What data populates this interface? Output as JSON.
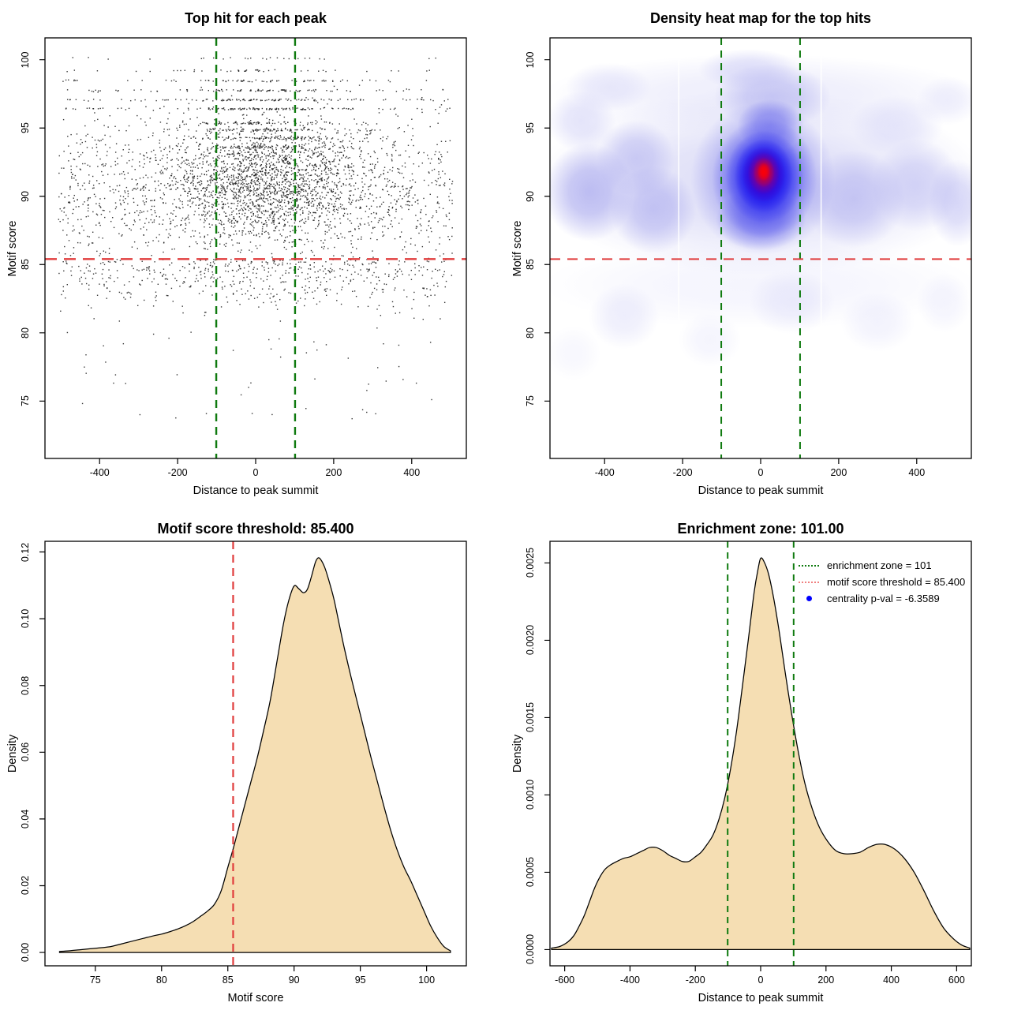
{
  "figure": {
    "background": "#ffffff"
  },
  "colors": {
    "threshold_red": "#e03c3c",
    "zone_green": "#0f7a0f",
    "legend_red": "#f08080",
    "legend_blue": "#0000ff",
    "density_fill": "#f5deb3",
    "curve_stroke": "#000000",
    "point_color": "#1a1a1a"
  },
  "stats": {
    "motif_score_threshold": 85.4,
    "enrichment_zone": 101,
    "centrality_pval": -6.3589
  },
  "chart_data": [
    {
      "id": "top-hits-scatter",
      "type": "scatter",
      "title": "Top hit for each peak",
      "xlabel": "Distance to peak summit",
      "ylabel": "Motif score",
      "xlim": [
        -540,
        540
      ],
      "ylim": [
        70.8,
        101.6
      ],
      "xticks": [
        -400,
        -200,
        0,
        200,
        400
      ],
      "xtick_labels": [
        "-400",
        "-200",
        "0",
        "200",
        "400"
      ],
      "yticks": [
        75,
        80,
        85,
        90,
        95,
        100
      ],
      "ytick_labels": [
        "75",
        "80",
        "85",
        "90",
        "95",
        "100"
      ],
      "grid": false,
      "hline": {
        "y": 85.4,
        "color": "#e03c3c",
        "dash": [
          15,
          9
        ],
        "width": 2.4
      },
      "vlines": [
        {
          "x": -101,
          "color": "#0f7a0f",
          "dash": [
            10,
            7
          ],
          "width": 2.4
        },
        {
          "x": 101,
          "color": "#0f7a0f",
          "dash": [
            10,
            7
          ],
          "width": 2.4
        }
      ],
      "points_spec": {
        "seed": 20240601,
        "point_size": 1.4,
        "point_alpha": 0.88,
        "clusters": [
          {
            "n": 1700,
            "x": {
              "dist": "normal",
              "mean": 25,
              "sd": 130,
              "min": -515,
              "max": 515
            },
            "y": {
              "dist": "normal",
              "mean": 91.2,
              "sd": 2.1,
              "min": 85.5,
              "max": 97.2
            }
          },
          {
            "n": 1400,
            "x": {
              "dist": "uniform",
              "min": -505,
              "max": 505
            },
            "y": {
              "dist": "normal",
              "mean": 90.2,
              "sd": 2.9,
              "min": 85.45,
              "max": 98.2
            }
          },
          {
            "n": 430,
            "x": {
              "dist": "uniform",
              "min": -505,
              "max": 505
            },
            "y": {
              "dist": "halfneg",
              "base": 85.4,
              "sd": 2.0,
              "min": 79.3
            }
          },
          {
            "n": 130,
            "x": {
              "dist": "normal",
              "mean": 20,
              "sd": 150,
              "min": -500,
              "max": 500
            },
            "y": {
              "dist": "halfneg",
              "base": 85.4,
              "sd": 1.6,
              "min": 80
            }
          },
          {
            "n": 46,
            "x": {
              "dist": "uniform",
              "min": -470,
              "max": 470
            },
            "y": {
              "dist": "uniform",
              "min": 73.6,
              "max": 79.6
            }
          }
        ],
        "rows": [
          {
            "y": 100.1,
            "n": 26
          },
          {
            "y": 99.2,
            "n": 42
          },
          {
            "y": 98.45,
            "n": 72
          },
          {
            "y": 97.75,
            "n": 95
          },
          {
            "y": 97.05,
            "n": 112
          },
          {
            "y": 96.4,
            "n": 128
          }
        ],
        "row_x": {
          "frac_center": 0.55,
          "center_mean": 30,
          "center_sd": 95,
          "uniform_min": -500,
          "uniform_max": 500
        },
        "row_jitter": 0.07,
        "center_rows": [
          {
            "y": 93.6,
            "n": 65
          },
          {
            "y": 94.25,
            "n": 72
          },
          {
            "y": 94.85,
            "n": 78
          },
          {
            "y": 95.35,
            "n": 70
          }
        ],
        "center_row_x": {
          "mean": 35,
          "sd": 110,
          "min": -500,
          "max": 500
        },
        "center_row_jitter": 0.09
      }
    },
    {
      "id": "top-hits-density-heatmap",
      "type": "heatmap",
      "title": "Density heat map for the top hits",
      "xlabel": "Distance to peak summit",
      "ylabel": "Motif score",
      "xlim": [
        -540,
        540
      ],
      "ylim": [
        70.8,
        101.6
      ],
      "xticks": [
        -400,
        -200,
        0,
        200,
        400
      ],
      "xtick_labels": [
        "-400",
        "-200",
        "0",
        "200",
        "400"
      ],
      "yticks": [
        75,
        80,
        85,
        90,
        95,
        100
      ],
      "ytick_labels": [
        "75",
        "80",
        "85",
        "90",
        "95",
        "100"
      ],
      "hotspot": {
        "x": 8,
        "y": 91.7
      },
      "colormap": [
        "#ffffff",
        "#bcbcef",
        "#4747f0",
        "#1608ea",
        "#8e0082",
        "#fb0007"
      ],
      "hline": {
        "y": 85.4,
        "color": "#e03c3c",
        "dash": [
          13,
          9
        ],
        "width": 2
      },
      "vlines": [
        {
          "x": -101,
          "color": "#0f7a0f",
          "dash": [
            9,
            7
          ],
          "width": 2
        },
        {
          "x": 101,
          "color": "#0f7a0f",
          "dash": [
            9,
            7
          ],
          "width": 2
        }
      ],
      "white_lines": [
        -210,
        155
      ],
      "blobs": [
        [
          0,
          91,
          580,
          6.8,
          "#bcbcef",
          0.5
        ],
        [
          0,
          97.4,
          560,
          3.0,
          "#d5d5f6",
          0.42
        ],
        [
          0,
          83.5,
          560,
          3.2,
          "#e8e8fb",
          0.45
        ],
        [
          -440,
          90.3,
          115,
          3.6,
          "#8a8ae8",
          0.52
        ],
        [
          -320,
          92.8,
          100,
          2.8,
          "#9e9eec",
          0.45
        ],
        [
          -275,
          89,
          110,
          3.2,
          "#9292ea",
          0.46
        ],
        [
          -460,
          95.5,
          90,
          2.2,
          "#b8b8f2",
          0.38
        ],
        [
          -390,
          98,
          110,
          1.8,
          "#c8c8f5",
          0.36
        ],
        [
          240,
          89.8,
          130,
          3.6,
          "#9e9eec",
          0.46
        ],
        [
          400,
          90.8,
          115,
          3.4,
          "#a8a8ee",
          0.42
        ],
        [
          505,
          89.5,
          75,
          3.2,
          "#9e9eec",
          0.38
        ],
        [
          350,
          95.2,
          120,
          2.2,
          "#c3c3f4",
          0.36
        ],
        [
          480,
          97,
          80,
          1.8,
          "#cfcff6",
          0.32
        ],
        [
          30,
          97.3,
          150,
          2.4,
          "#9e9eec",
          0.5
        ],
        [
          -30,
          99.3,
          130,
          1.5,
          "#b8b8f2",
          0.4
        ],
        [
          -350,
          81.2,
          90,
          2.4,
          "#cfcff6",
          0.36
        ],
        [
          -130,
          79.5,
          80,
          2.0,
          "#dcdcf9",
          0.3
        ],
        [
          80,
          82.3,
          110,
          2.4,
          "#cfcff6",
          0.34
        ],
        [
          300,
          80.8,
          95,
          2.2,
          "#d8d8f8",
          0.32
        ],
        [
          470,
          82.2,
          70,
          2.2,
          "#d8d8f8",
          0.28
        ],
        [
          -480,
          78.5,
          70,
          2.0,
          "#e2e2fa",
          0.26
        ],
        [
          5,
          91.3,
          185,
          5.6,
          "#6e6ee9",
          0.62
        ],
        [
          0,
          88.3,
          115,
          2.3,
          "#4646ea",
          0.5
        ],
        [
          25,
          95.2,
          85,
          1.9,
          "#4d4de9",
          0.45
        ],
        [
          10,
          91.3,
          135,
          4.4,
          "#4747f0",
          0.8
        ],
        [
          10,
          91.4,
          100,
          3.4,
          "#2424f3",
          0.88
        ],
        [
          8,
          91.5,
          75,
          2.7,
          "#1608ea",
          0.93
        ],
        [
          8,
          91.6,
          56,
          2.05,
          "#4e00c4",
          0.93
        ],
        [
          8,
          91.7,
          41,
          1.55,
          "#8e0082",
          0.94
        ],
        [
          8,
          91.75,
          28,
          1.1,
          "#cb0033",
          0.96
        ],
        [
          8,
          91.8,
          16.5,
          0.68,
          "#fb0007",
          1
        ]
      ]
    },
    {
      "id": "motif-score-density",
      "type": "density",
      "title": "Motif score threshold: 85.400",
      "xlabel": "Motif score",
      "ylabel": "Density",
      "xlim": [
        71.2,
        103.0
      ],
      "ylim": [
        -0.004,
        0.1232
      ],
      "xticks": [
        75,
        80,
        85,
        90,
        95,
        100
      ],
      "xtick_labels": [
        "75",
        "80",
        "85",
        "90",
        "95",
        "100"
      ],
      "yticks": [
        0,
        0.02,
        0.04,
        0.06,
        0.08,
        0.1,
        0.12
      ],
      "ytick_labels": [
        "0.00",
        "0.02",
        "0.04",
        "0.06",
        "0.08",
        "0.10",
        "0.12"
      ],
      "fill": "#f5deb3",
      "stroke": "#000000",
      "peak": {
        "x": 91.8,
        "y": 0.118
      },
      "vlines": [
        {
          "x": 85.4,
          "color": "#e03c3c",
          "dash": [
            10,
            7
          ],
          "width": 2.2
        }
      ],
      "curve": {
        "x": [
          72.3,
          73.0,
          73.8,
          74.6,
          75.4,
          76.2,
          77.0,
          77.8,
          78.6,
          79.4,
          80.0,
          80.6,
          81.2,
          81.8,
          82.4,
          83.0,
          83.5,
          84.0,
          84.5,
          85.0,
          85.4,
          85.8,
          86.2,
          86.7,
          87.2,
          87.7,
          88.2,
          88.7,
          89.2,
          89.6,
          90.0,
          90.35,
          90.7,
          91.0,
          91.3,
          91.6,
          91.8,
          92.0,
          92.3,
          92.6,
          93.0,
          93.4,
          93.8,
          94.3,
          94.8,
          95.3,
          95.8,
          96.3,
          96.8,
          97.3,
          97.8,
          98.3,
          98.8,
          99.3,
          99.8,
          100.3,
          100.8,
          101.3,
          101.8
        ],
        "y": [
          0.0003,
          0.0005,
          0.0008,
          0.0011,
          0.0014,
          0.0018,
          0.0026,
          0.0034,
          0.0042,
          0.005,
          0.0055,
          0.0062,
          0.007,
          0.008,
          0.0093,
          0.011,
          0.0125,
          0.0145,
          0.0185,
          0.0255,
          0.031,
          0.037,
          0.043,
          0.0505,
          0.058,
          0.0665,
          0.0755,
          0.087,
          0.0985,
          0.1055,
          0.1098,
          0.109,
          0.1078,
          0.1088,
          0.1125,
          0.1168,
          0.1182,
          0.1178,
          0.1155,
          0.1118,
          0.106,
          0.0985,
          0.091,
          0.0825,
          0.0745,
          0.0665,
          0.0585,
          0.051,
          0.0435,
          0.0365,
          0.0305,
          0.0255,
          0.0215,
          0.017,
          0.0125,
          0.008,
          0.0045,
          0.0018,
          0.0005
        ]
      }
    },
    {
      "id": "summit-distance-density",
      "type": "density",
      "title": "Enrichment zone: 101.00",
      "xlabel": "Distance to peak summit",
      "ylabel": "Density",
      "xlim": [
        -645,
        645
      ],
      "ylim": [
        -0.000105,
        0.00264
      ],
      "xticks": [
        -600,
        -400,
        -200,
        0,
        200,
        400,
        600
      ],
      "xtick_labels": [
        "-600",
        "-400",
        "-200",
        "0",
        "200",
        "400",
        "600"
      ],
      "yticks": [
        0,
        0.0005,
        0.001,
        0.0015,
        0.002,
        0.0025
      ],
      "ytick_labels": [
        "0.0000",
        "0.0005",
        "0.0010",
        "0.0015",
        "0.0020",
        "0.0025"
      ],
      "fill": "#f5deb3",
      "stroke": "#000000",
      "peak": {
        "x": 0,
        "y": 0.00253
      },
      "vlines": [
        {
          "x": -101,
          "color": "#0f7a0f",
          "dash": [
            8,
            6
          ],
          "width": 2
        },
        {
          "x": 101,
          "color": "#0f7a0f",
          "dash": [
            8,
            6
          ],
          "width": 2
        }
      ],
      "curve": {
        "x": [
          -640,
          -615,
          -590,
          -572,
          -556,
          -540,
          -524,
          -508,
          -492,
          -476,
          -458,
          -440,
          -420,
          -400,
          -380,
          -360,
          -340,
          -320,
          -300,
          -280,
          -260,
          -240,
          -220,
          -200,
          -182,
          -164,
          -146,
          -128,
          -110,
          -92,
          -74,
          -56,
          -38,
          -20,
          -8,
          0,
          10,
          24,
          40,
          58,
          76,
          96,
          116,
          136,
          158,
          180,
          205,
          230,
          255,
          280,
          305,
          330,
          355,
          380,
          410,
          440,
          470,
          500,
          530,
          560,
          590,
          615,
          640
        ],
        "y": [
          1e-05,
          2e-05,
          5e-05,
          9e-05,
          0.00015,
          0.00022,
          0.00031,
          0.0004,
          0.00047,
          0.00052,
          0.00055,
          0.00057,
          0.00059,
          0.0006,
          0.00062,
          0.00064,
          0.00066,
          0.00066,
          0.00064,
          0.00061,
          0.00059,
          0.00057,
          0.00057,
          0.0006,
          0.00063,
          0.00068,
          0.00074,
          0.00084,
          0.00098,
          0.00117,
          0.00141,
          0.0017,
          0.002,
          0.00231,
          0.00246,
          0.00253,
          0.00251,
          0.00243,
          0.00227,
          0.00204,
          0.00178,
          0.00151,
          0.00127,
          0.00107,
          0.00091,
          0.00079,
          0.0007,
          0.00064,
          0.00062,
          0.00062,
          0.00063,
          0.00066,
          0.00068,
          0.00068,
          0.00065,
          0.00059,
          0.0005,
          0.00038,
          0.00025,
          0.00014,
          7e-05,
          3e-05,
          1e-05
        ]
      },
      "legend": {
        "position": "top-right",
        "items": [
          {
            "label": "enrichment zone = 101",
            "swatch": "dotted-line",
            "color": "#0f7a0f"
          },
          {
            "label": "motif score threshold = 85.400",
            "swatch": "dotted-line",
            "color": "#f08080"
          },
          {
            "label": "centrality p-val = -6.3589",
            "swatch": "dot",
            "color": "#0000ff"
          }
        ]
      }
    }
  ]
}
